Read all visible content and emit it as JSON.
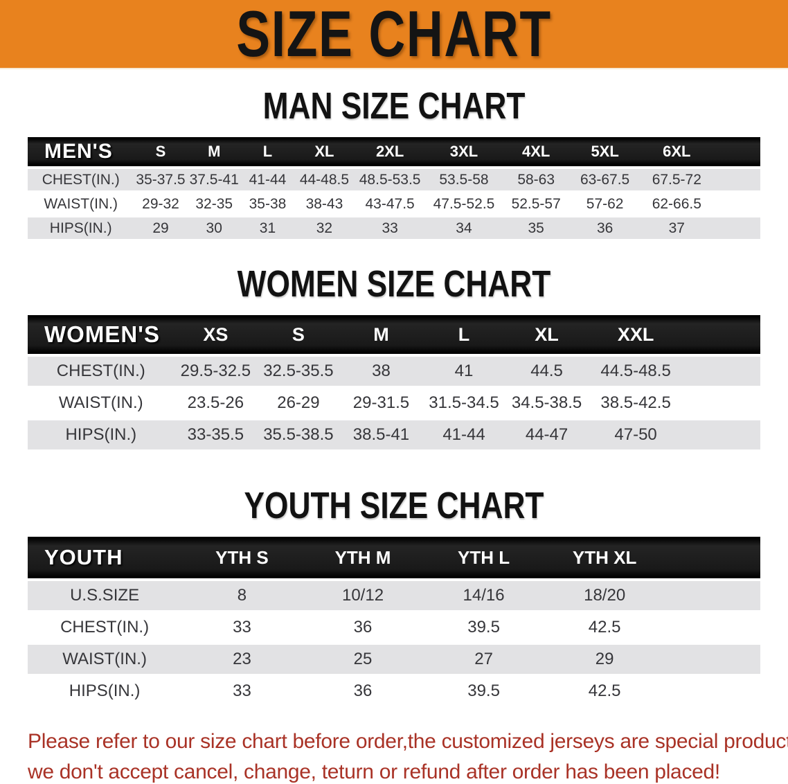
{
  "banner": {
    "title": "SIZE CHART",
    "bg_color": "#E8821E"
  },
  "sections": {
    "men": {
      "heading": "MAN SIZE CHART",
      "corner_label": "MEN'S",
      "columns": [
        "S",
        "M",
        "L",
        "XL",
        "2XL",
        "3XL",
        "4XL",
        "5XL",
        "6XL"
      ],
      "rows": [
        {
          "label": "CHEST(IN.)",
          "values": [
            "35-37.5",
            "37.5-41",
            "41-44",
            "44-48.5",
            "48.5-53.5",
            "53.5-58",
            "58-63",
            "63-67.5",
            "67.5-72"
          ]
        },
        {
          "label": "WAIST(IN.)",
          "values": [
            "29-32",
            "32-35",
            "35-38",
            "38-43",
            "43-47.5",
            "47.5-52.5",
            "52.5-57",
            "57-62",
            "62-66.5"
          ]
        },
        {
          "label": "HIPS(IN.)",
          "values": [
            "29",
            "30",
            "31",
            "32",
            "33",
            "34",
            "35",
            "36",
            "37"
          ]
        }
      ]
    },
    "women": {
      "heading": "WOMEN SIZE CHART",
      "corner_label": "WOMEN'S",
      "columns": [
        "XS",
        "S",
        "M",
        "L",
        "XL",
        "XXL"
      ],
      "rows": [
        {
          "label": "CHEST(IN.)",
          "values": [
            "29.5-32.5",
            "32.5-35.5",
            "38",
            "41",
            "44.5",
            "44.5-48.5"
          ]
        },
        {
          "label": "WAIST(IN.)",
          "values": [
            "23.5-26",
            "26-29",
            "29-31.5",
            "31.5-34.5",
            "34.5-38.5",
            "38.5-42.5"
          ]
        },
        {
          "label": "HIPS(IN.)",
          "values": [
            "33-35.5",
            "35.5-38.5",
            "38.5-41",
            "41-44",
            "44-47",
            "47-50"
          ]
        }
      ]
    },
    "youth": {
      "heading": "YOUTH SIZE CHART",
      "corner_label": "YOUTH",
      "columns": [
        "YTH S",
        "YTH M",
        "YTH L",
        "YTH XL"
      ],
      "rows": [
        {
          "label": "U.S.SIZE",
          "values": [
            "8",
            "10/12",
            "14/16",
            "18/20"
          ]
        },
        {
          "label": "CHEST(IN.)",
          "values": [
            "33",
            "36",
            "39.5",
            "42.5"
          ]
        },
        {
          "label": "WAIST(IN.)",
          "values": [
            "23",
            "25",
            "27",
            "29"
          ]
        },
        {
          "label": "HIPS(IN.)",
          "values": [
            "33",
            "36",
            "39.5",
            "42.5"
          ]
        }
      ]
    }
  },
  "disclaimer": {
    "line1": "Please refer to our size chart before order,the customized jerseys are special products,",
    "line2": "we don't accept cancel, change, teturn or refund after order has been placed!",
    "text_color": "#A93226"
  }
}
